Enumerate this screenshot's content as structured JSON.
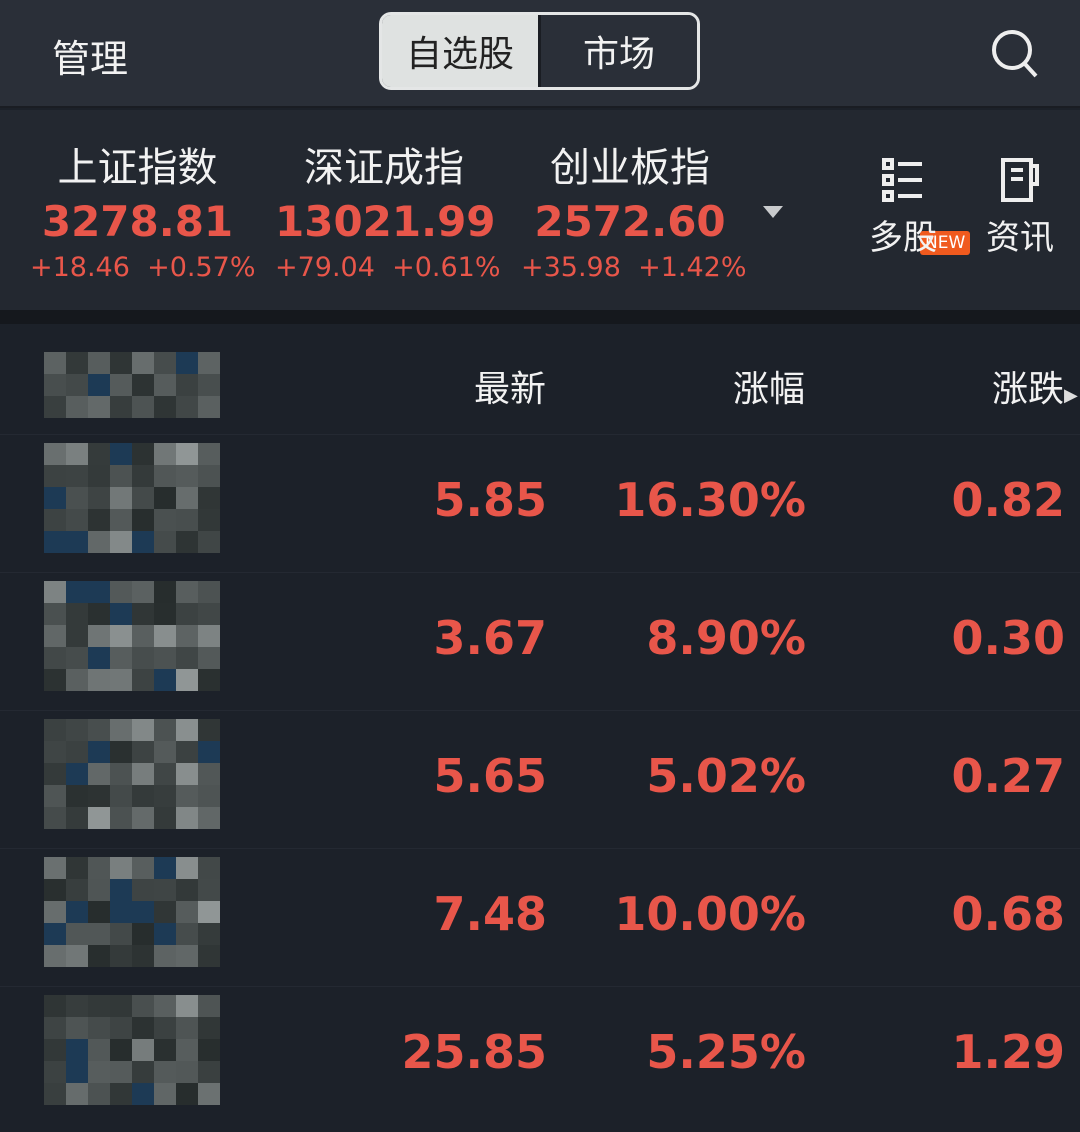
{
  "header": {
    "manage": "管理",
    "tabs": [
      {
        "label": "自选股",
        "active": true
      },
      {
        "label": "市场",
        "active": false
      }
    ],
    "search_icon": "search-icon"
  },
  "indices": [
    {
      "name": "上证指数",
      "value": "3278.81",
      "change": "+18.46",
      "pct": "+0.57%"
    },
    {
      "name": "深证成指",
      "value": "13021.99",
      "change": "+79.04",
      "pct": "+0.61%"
    },
    {
      "name": "创业板指",
      "value": "2572.60",
      "change": "+35.98",
      "pct": "+1.42%"
    }
  ],
  "tools": [
    {
      "label": "多股",
      "badge": "NEW",
      "icon": "multi-stock-icon"
    },
    {
      "label": "资讯",
      "icon": "news-icon"
    }
  ],
  "columns": {
    "latest": "最新",
    "change_pct": "涨幅",
    "change": "涨跌"
  },
  "rows": [
    {
      "latest": "5.85",
      "pct": "16.30%",
      "change": "0.82"
    },
    {
      "latest": "3.67",
      "pct": "8.90%",
      "change": "0.30"
    },
    {
      "latest": "5.65",
      "pct": "5.02%",
      "change": "0.27"
    },
    {
      "latest": "7.48",
      "pct": "10.00%",
      "change": "0.68"
    },
    {
      "latest": "25.85",
      "pct": "5.25%",
      "change": "1.29"
    }
  ],
  "colors": {
    "up": "#e8564a",
    "badge": "#f05a1e",
    "background": "#1c2129"
  }
}
